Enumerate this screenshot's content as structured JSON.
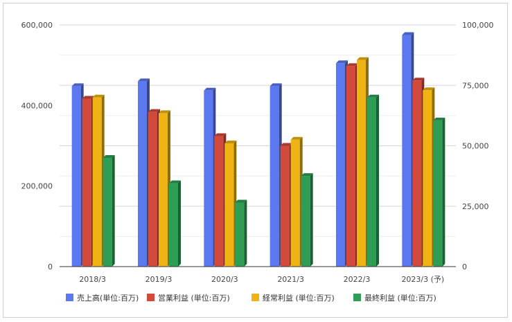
{
  "chart_data": {
    "type": "bar",
    "title": "",
    "categories": [
      "2018/3",
      "2019/3",
      "2020/3",
      "2021/3",
      "2022/3",
      "2023/3 (予)"
    ],
    "left_axis": {
      "min": 0,
      "max": 600000,
      "ticks": [
        "0",
        "200,000",
        "400,000",
        "600,000"
      ],
      "tick_values": [
        0,
        200000,
        400000,
        600000
      ]
    },
    "right_axis": {
      "min": 0,
      "max": 100000,
      "ticks": [
        "0",
        "25,000",
        "50,000",
        "75,000",
        "100,000"
      ],
      "tick_values": [
        0,
        25000,
        50000,
        75000,
        100000
      ]
    },
    "gridlines": true,
    "legend_position": "bottom",
    "series": [
      {
        "name": "売上高(単位:百万)",
        "axis": "left",
        "color": "#5b78f0",
        "values": [
          448000,
          460000,
          437000,
          448000,
          505000,
          575000
        ]
      },
      {
        "name": "営業利益 (単位:百万)",
        "axis": "right",
        "color": "#d24a3c",
        "values": [
          69500,
          64000,
          54000,
          50000,
          83000,
          77000
        ]
      },
      {
        "name": "経常利益 (単位:百万)",
        "axis": "right",
        "color": "#efb413",
        "values": [
          70000,
          63500,
          51000,
          52500,
          85500,
          73000
        ]
      },
      {
        "name": "最終利益 (単位:百万)",
        "axis": "right",
        "color": "#2e9e55",
        "values": [
          45000,
          34500,
          26500,
          37500,
          70000,
          60500
        ]
      }
    ]
  }
}
